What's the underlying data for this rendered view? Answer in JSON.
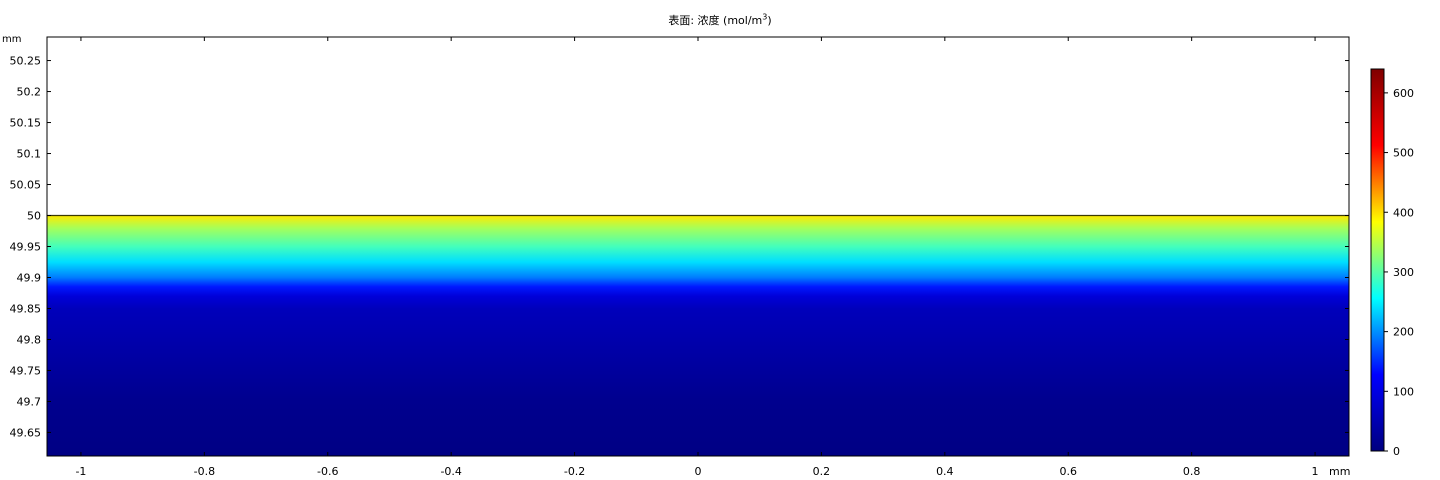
{
  "chart_data": {
    "type": "heatmap",
    "title_base": "表面: 浓度 (mol/m",
    "title_sup": "3",
    "title_close": ")",
    "xunit": "mm",
    "yunit": "mm",
    "xlim": [
      -1.055,
      1.055
    ],
    "ylim": [
      49.612,
      50.288
    ],
    "xticks": [
      -1,
      -0.8,
      -0.6,
      -0.4,
      -0.2,
      0,
      0.2,
      0.4,
      0.6,
      0.8,
      1
    ],
    "xtick_labels": [
      "-1",
      "-0.8",
      "-0.6",
      "-0.4",
      "-0.2",
      "0",
      "0.2",
      "0.4",
      "0.6",
      "0.8",
      "1"
    ],
    "yticks": [
      49.65,
      49.7,
      49.75,
      49.8,
      49.85,
      49.9,
      49.95,
      50,
      50.05,
      50.1,
      50.15,
      50.2,
      50.25
    ],
    "ytick_labels": [
      "49.65",
      "49.7",
      "49.75",
      "49.8",
      "49.85",
      "49.9",
      "49.95",
      "50",
      "50.05",
      "50.1",
      "50.15",
      "50.2",
      "50.25"
    ],
    "domain_top": 50,
    "concentration_profile": {
      "y": [
        50.0,
        49.98,
        49.95,
        49.925,
        49.9,
        49.885,
        49.87,
        49.85,
        49.8,
        49.75,
        49.7,
        49.612
      ],
      "value": [
        395,
        340,
        290,
        240,
        190,
        140,
        90,
        60,
        45,
        30,
        15,
        5
      ]
    },
    "colorbar": {
      "min": 0,
      "max": 640,
      "ticks": [
        0,
        100,
        200,
        300,
        400,
        500,
        600
      ],
      "tick_labels": [
        "0",
        "100",
        "200",
        "300",
        "400",
        "500",
        "600"
      ],
      "colormap": "rainbow",
      "stops": [
        "#00007f",
        "#0000ff",
        "#00ffff",
        "#ffff00",
        "#ff0000",
        "#7f0000"
      ]
    },
    "grid": false
  }
}
